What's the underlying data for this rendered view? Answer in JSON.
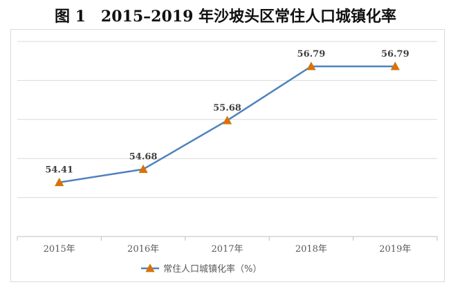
{
  "chart_data": {
    "type": "line",
    "title": "图 1　2015–2019 年沙坡头区常住人口城镇化率",
    "categories": [
      "2015年",
      "2016年",
      "2017年",
      "2018年",
      "2019年"
    ],
    "series": [
      {
        "name": "常住人口城镇化率（%）",
        "values": [
          54.41,
          54.68,
          55.68,
          56.79,
          56.79
        ]
      }
    ],
    "data_labels": [
      "54.41",
      "54.68",
      "55.68",
      "56.79",
      "56.79"
    ],
    "ylim": [
      53.3,
      57.3
    ],
    "grid": true,
    "legend": "bottom",
    "colors": {
      "line": "#4f81bd",
      "marker": "#e46c0a",
      "marker_stroke": "#b8860b",
      "grid": "#d9d9d9"
    }
  }
}
